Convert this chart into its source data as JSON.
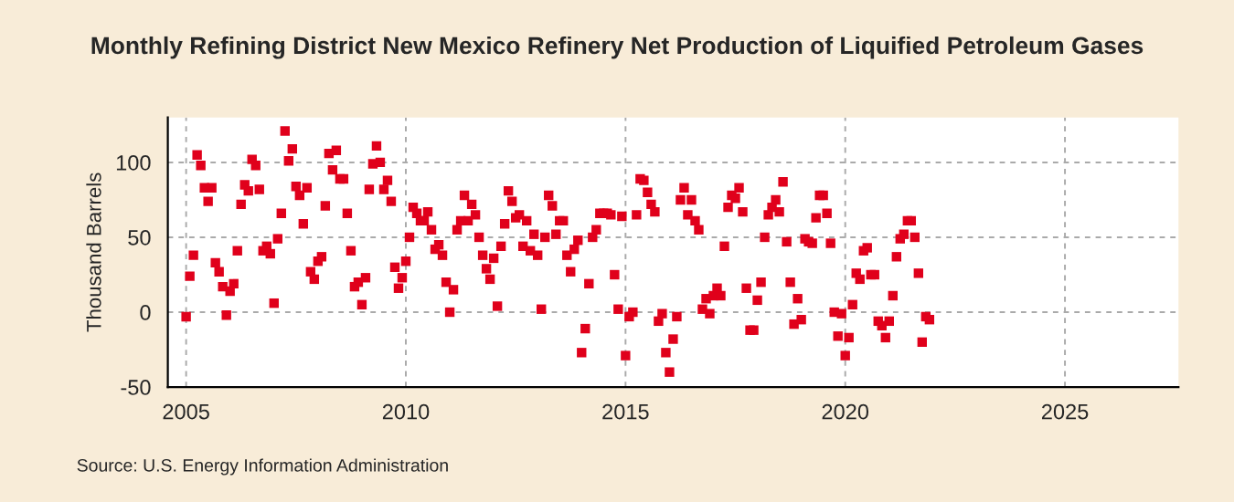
{
  "chart_data": {
    "type": "scatter",
    "title": "Monthly Refining District New Mexico Refinery Net Production of Liquified Petroleum Gases",
    "ylabel": "Thousand Barrels",
    "annotations": [
      "Source: U.S. Energy Information Administration"
    ],
    "x": [
      "2005-01",
      "2005-02",
      "2005-03",
      "2005-04",
      "2005-05",
      "2005-06",
      "2005-07",
      "2005-08",
      "2005-09",
      "2005-10",
      "2005-11",
      "2005-12",
      "2006-01",
      "2006-02",
      "2006-03",
      "2006-04",
      "2006-05",
      "2006-06",
      "2006-07",
      "2006-08",
      "2006-09",
      "2006-10",
      "2006-11",
      "2006-12",
      "2007-01",
      "2007-02",
      "2007-03",
      "2007-04",
      "2007-05",
      "2007-06",
      "2007-07",
      "2007-08",
      "2007-09",
      "2007-10",
      "2007-11",
      "2007-12",
      "2008-01",
      "2008-02",
      "2008-03",
      "2008-04",
      "2008-05",
      "2008-06",
      "2008-07",
      "2008-08",
      "2008-09",
      "2008-10",
      "2008-11",
      "2008-12",
      "2009-01",
      "2009-02",
      "2009-03",
      "2009-04",
      "2009-05",
      "2009-06",
      "2009-07",
      "2009-08",
      "2009-09",
      "2009-10",
      "2009-11",
      "2009-12",
      "2010-01",
      "2010-02",
      "2010-03",
      "2010-04",
      "2010-05",
      "2010-06",
      "2010-07",
      "2010-08",
      "2010-09",
      "2010-10",
      "2010-11",
      "2010-12",
      "2011-01",
      "2011-02",
      "2011-03",
      "2011-04",
      "2011-05",
      "2011-06",
      "2011-07",
      "2011-08",
      "2011-09",
      "2011-10",
      "2011-11",
      "2011-12",
      "2012-01",
      "2012-02",
      "2012-03",
      "2012-04",
      "2012-05",
      "2012-06",
      "2012-07",
      "2012-08",
      "2012-09",
      "2012-10",
      "2012-11",
      "2012-12",
      "2013-01",
      "2013-02",
      "2013-03",
      "2013-04",
      "2013-05",
      "2013-06",
      "2013-07",
      "2013-08",
      "2013-09",
      "2013-10",
      "2013-11",
      "2013-12",
      "2014-01",
      "2014-02",
      "2014-03",
      "2014-04",
      "2014-05",
      "2014-06",
      "2014-07",
      "2014-08",
      "2014-09",
      "2014-10",
      "2014-11",
      "2014-12",
      "2015-01",
      "2015-02",
      "2015-03",
      "2015-04",
      "2015-05",
      "2015-06",
      "2015-07",
      "2015-08",
      "2015-09",
      "2015-10",
      "2015-11",
      "2015-12",
      "2016-01",
      "2016-02",
      "2016-03",
      "2016-04",
      "2016-05",
      "2016-06",
      "2016-07",
      "2016-08",
      "2016-09",
      "2016-10",
      "2016-11",
      "2016-12",
      "2017-01",
      "2017-02",
      "2017-03",
      "2017-04",
      "2017-05",
      "2017-06",
      "2017-07",
      "2017-08",
      "2017-09",
      "2017-10",
      "2017-11",
      "2017-12",
      "2018-01",
      "2018-02",
      "2018-03",
      "2018-04",
      "2018-05",
      "2018-06",
      "2018-07",
      "2018-08",
      "2018-09",
      "2018-10",
      "2018-11",
      "2018-12",
      "2019-01",
      "2019-02",
      "2019-03",
      "2019-04",
      "2019-05",
      "2019-06",
      "2019-07",
      "2019-08",
      "2019-09",
      "2019-10",
      "2019-11",
      "2019-12",
      "2020-01",
      "2020-02",
      "2020-03",
      "2020-04",
      "2020-05",
      "2020-06",
      "2020-07",
      "2020-08",
      "2020-09",
      "2020-10",
      "2020-11",
      "2020-12",
      "2021-01",
      "2021-02",
      "2021-03",
      "2021-04",
      "2021-05",
      "2021-06",
      "2021-07",
      "2021-08",
      "2021-09",
      "2021-10",
      "2021-11",
      "2021-12"
    ],
    "xlim": [
      "2004-08",
      "2027-08"
    ],
    "xticks": [
      "2005",
      "2010",
      "2015",
      "2020",
      "2025"
    ],
    "ylim": [
      -50,
      130
    ],
    "yticks": [
      -50,
      0,
      50,
      100
    ],
    "grid": true,
    "marker": "square",
    "series": [
      {
        "color": "#e0001b",
        "values": [
          -3,
          24,
          38,
          105,
          98,
          83,
          74,
          83,
          33,
          27,
          17,
          -2,
          14,
          19,
          41,
          72,
          85,
          81,
          102,
          98,
          82,
          41,
          44,
          39,
          6,
          49,
          66,
          121,
          101,
          109,
          84,
          78,
          59,
          83,
          27,
          22,
          34,
          37,
          71,
          106,
          95,
          108,
          89,
          89,
          66,
          41,
          17,
          20,
          5,
          23,
          82,
          99,
          111,
          100,
          82,
          88,
          74,
          30,
          16,
          23,
          34,
          50,
          70,
          66,
          61,
          61,
          67,
          55,
          42,
          45,
          38,
          20,
          0,
          15,
          55,
          61,
          78,
          61,
          72,
          65,
          50,
          38,
          29,
          22,
          36,
          4,
          44,
          59,
          81,
          74,
          63,
          65,
          44,
          61,
          41,
          52,
          38,
          2,
          50,
          78,
          71,
          52,
          61,
          61,
          38,
          27,
          42,
          48,
          -27,
          -11,
          19,
          50,
          55,
          66,
          66,
          66,
          65,
          25,
          2,
          64,
          -29,
          -3,
          0,
          65,
          89,
          88,
          80,
          72,
          67,
          -6,
          -1,
          -27,
          -40,
          -18,
          -3,
          75,
          83,
          65,
          75,
          61,
          55,
          2,
          9,
          -1,
          11,
          16,
          11,
          44,
          70,
          78,
          76,
          83,
          67,
          16,
          -12,
          -12,
          8,
          20,
          50,
          65,
          70,
          75,
          67,
          87,
          47,
          20,
          -8,
          9,
          -5,
          49,
          47,
          46,
          63,
          78,
          78,
          66,
          46,
          0,
          -16,
          -1,
          -29,
          -17,
          5,
          26,
          22,
          41,
          43,
          25,
          25,
          -6,
          -9,
          -17,
          -6,
          11,
          37,
          49,
          52,
          61,
          61,
          50,
          26,
          -20,
          -3,
          -5
        ]
      }
    ]
  }
}
